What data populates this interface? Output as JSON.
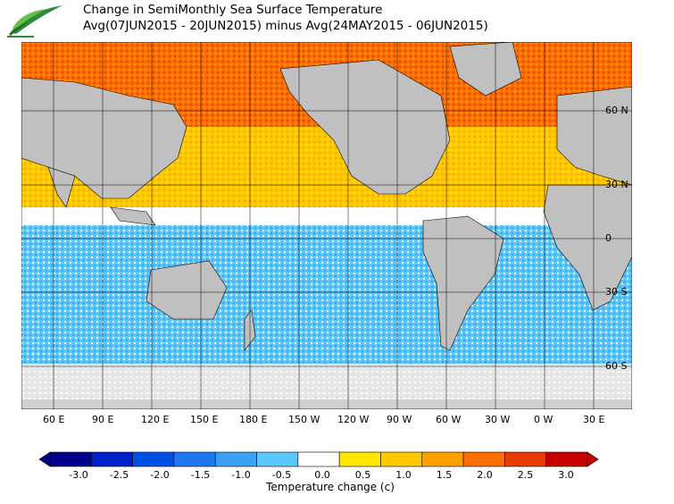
{
  "header": {
    "title_line1": "Change in SemiMonthly Sea Surface Temperature",
    "title_line2": "Avg(07JUN2015 - 20JUN2015) minus Avg(24MAY2015 - 06JUN2015)"
  },
  "map": {
    "lon_labels": [
      "60 E",
      "90 E",
      "120 E",
      "150 E",
      "180 E",
      "150 W",
      "120 W",
      "90 W",
      "60 W",
      "30 W",
      "0 W",
      "30 E"
    ],
    "lat_labels": [
      "60 N",
      "30 N",
      "0",
      "30 S",
      "60 S"
    ],
    "land_color": "#c0c0c0",
    "ice_color": "#e6e6e6",
    "grid_color": "#000000"
  },
  "colorbar": {
    "label": "Temperature change  (c)",
    "tick_labels": [
      "-3.0",
      "-2.5",
      "-2.0",
      "-1.5",
      "-1.0",
      "-0.5",
      "0.0",
      "0.5",
      "1.0",
      "1.5",
      "2.0",
      "2.5",
      "3.0"
    ],
    "colors": [
      "#00008b",
      "#0020c8",
      "#0050e6",
      "#1e78f0",
      "#3ca0f5",
      "#5ac8fa",
      "#ffffff",
      "#ffe600",
      "#ffc800",
      "#ffa000",
      "#ff6e00",
      "#e63c00",
      "#c80000"
    ]
  }
}
